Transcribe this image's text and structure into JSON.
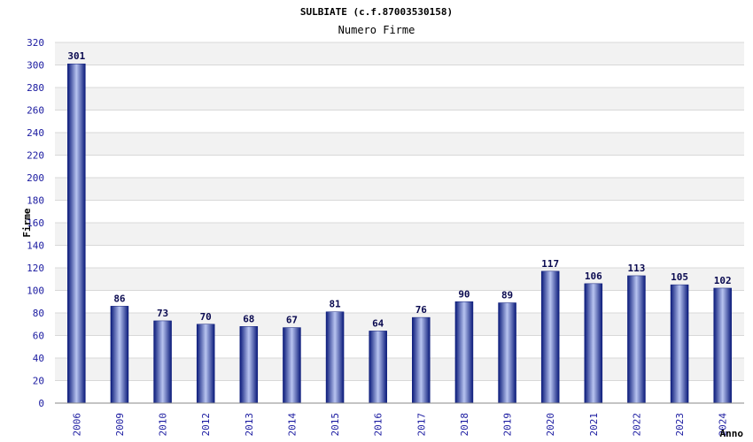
{
  "chart_data": {
    "type": "bar",
    "title": "SULBIATE (c.f.87003530158)",
    "subtitle": "Numero Firme",
    "xlabel": "Anno",
    "ylabel": "Firme",
    "categories": [
      "2006",
      "2009",
      "2010",
      "2012",
      "2013",
      "2014",
      "2015",
      "2016",
      "2017",
      "2018",
      "2019",
      "2020",
      "2021",
      "2022",
      "2023",
      "2024"
    ],
    "values": [
      301,
      86,
      73,
      70,
      68,
      67,
      81,
      64,
      76,
      90,
      89,
      117,
      106,
      113,
      105,
      102
    ],
    "ylim": [
      0,
      320
    ],
    "ytick_step": 20,
    "grid": true,
    "colors": {
      "bar_dark": "#0a1a7a",
      "bar_light": "#b8c4f0",
      "band": "#f2f2f2",
      "grid": "#d8d8d8",
      "tick_text": "#1a1aa0"
    }
  }
}
